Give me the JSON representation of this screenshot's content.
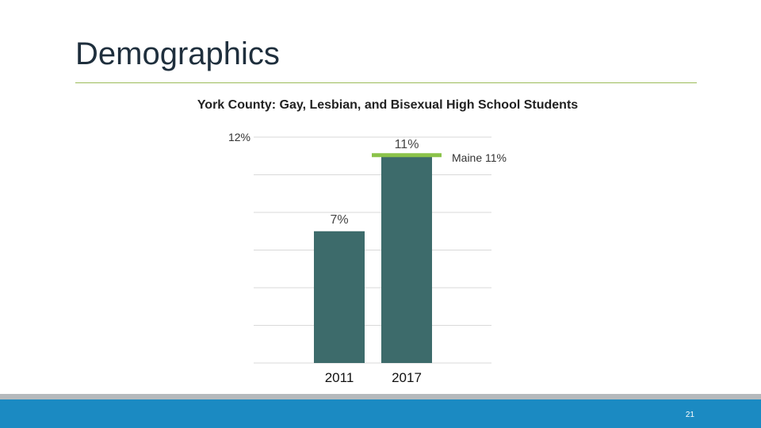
{
  "slide": {
    "title": "Demographics",
    "page_number": "21"
  },
  "colors": {
    "bar": "#3d6b6b",
    "benchmark": "#8bc34a",
    "gridline": "#d9d9d9",
    "title_rule": "#9bbb59",
    "footer_blue": "#1b8ac2",
    "footer_gray": "#b5b9bc"
  },
  "chart_data": {
    "type": "bar",
    "title": "York County: Gay, Lesbian, and Bisexual High School Students",
    "categories": [
      "2011",
      "2017"
    ],
    "values": [
      7,
      11
    ],
    "value_labels": [
      "7%",
      "11%"
    ],
    "y_axis_top_label": "12%",
    "ylim": [
      0,
      12
    ],
    "grid": true,
    "benchmark": {
      "label": "Maine 11%",
      "value": 11,
      "category": "2017"
    }
  }
}
